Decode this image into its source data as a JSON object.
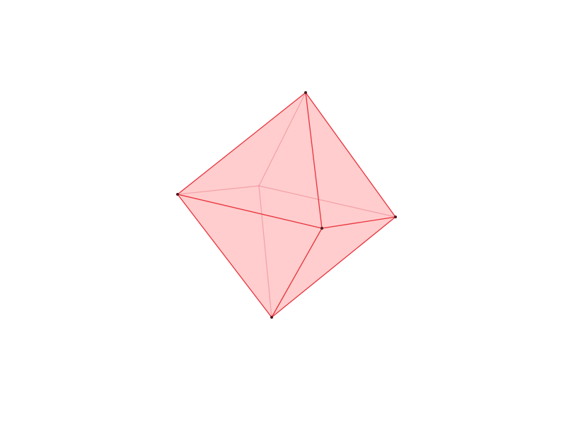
{
  "diagram": {
    "shape": "octahedron",
    "colors": {
      "background": "#ffffff",
      "face_fill": "#ff0000",
      "edge_front": "#e8323c",
      "edge_hidden": "#f2a0a8",
      "vertex": "#4a1a22"
    },
    "face_fill_opacity": 0.1,
    "vertices": [
      {
        "id": "top",
        "hidden": false
      },
      {
        "id": "left",
        "hidden": false
      },
      {
        "id": "right",
        "hidden": false
      },
      {
        "id": "bottom",
        "hidden": false
      },
      {
        "id": "front",
        "hidden": false
      },
      {
        "id": "back",
        "hidden": true
      }
    ],
    "faces": [
      [
        "top",
        "left",
        "front"
      ],
      [
        "top",
        "front",
        "right"
      ],
      [
        "bottom",
        "left",
        "front"
      ],
      [
        "bottom",
        "front",
        "right"
      ],
      [
        "top",
        "left",
        "back"
      ],
      [
        "top",
        "back",
        "right"
      ],
      [
        "bottom",
        "left",
        "back"
      ],
      [
        "bottom",
        "back",
        "right"
      ]
    ],
    "edges": [
      {
        "from": "top",
        "to": "left",
        "hidden": false
      },
      {
        "from": "top",
        "to": "right",
        "hidden": false
      },
      {
        "from": "top",
        "to": "front",
        "hidden": false
      },
      {
        "from": "bottom",
        "to": "left",
        "hidden": false
      },
      {
        "from": "bottom",
        "to": "right",
        "hidden": false
      },
      {
        "from": "bottom",
        "to": "front",
        "hidden": false
      },
      {
        "from": "left",
        "to": "front",
        "hidden": false
      },
      {
        "from": "front",
        "to": "right",
        "hidden": false
      },
      {
        "from": "top",
        "to": "back",
        "hidden": true
      },
      {
        "from": "bottom",
        "to": "back",
        "hidden": true
      },
      {
        "from": "left",
        "to": "back",
        "hidden": true
      },
      {
        "from": "back",
        "to": "right",
        "hidden": true
      }
    ]
  }
}
